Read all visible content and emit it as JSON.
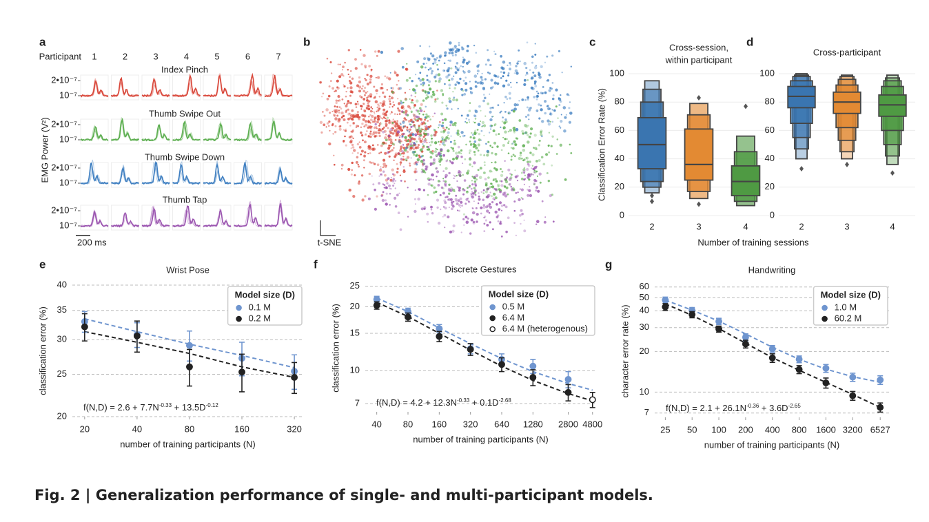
{
  "figure": {
    "caption": "Fig. 2 | Generalization performance of single- and multi-participant models."
  },
  "chart_data": [
    {
      "panel": "a",
      "type": "traces",
      "participant_label": "Participant",
      "participants": [
        "1",
        "2",
        "3",
        "4",
        "5",
        "6",
        "7"
      ],
      "rows": [
        {
          "name": "Index Pinch",
          "color": "#d9483b"
        },
        {
          "name": "Thumb Swipe Out",
          "color": "#5cae4f"
        },
        {
          "name": "Thumb Swipe Down",
          "color": "#3f7fc1"
        },
        {
          "name": "Thumb Tap",
          "color": "#9b55b0"
        }
      ],
      "yticks": [
        {
          "value": 2e-07,
          "label": "2•10⁻⁷"
        },
        {
          "value": 1e-07,
          "label": "10⁻⁷"
        }
      ],
      "ylabel": "EMG Power (V²)",
      "scale_bar": "200 ms"
    },
    {
      "panel": "b",
      "type": "embedding",
      "xlabel": "t-SNE",
      "colors": [
        "#d9483b",
        "#5cae4f",
        "#3f7fc1",
        "#9b55b0"
      ]
    },
    {
      "panel": "c",
      "type": "boxen",
      "title": [
        "Cross-session,",
        "within participant"
      ],
      "ylabel": "Classification Error Rate (%)",
      "xlabel": "Number of training sessions",
      "categories": [
        "2",
        "3",
        "4"
      ],
      "ylim": [
        0,
        100
      ],
      "yticks": [
        0,
        20,
        40,
        60,
        80,
        100
      ],
      "grid": true,
      "boxes": [
        {
          "color": "#3a75b0",
          "median": 50,
          "levels": [
            [
              33,
              69
            ],
            [
              24,
              80
            ],
            [
              20,
              89
            ],
            [
              16,
              95
            ]
          ],
          "outliers": [
            14,
            10
          ]
        },
        {
          "color": "#e38a33",
          "median": 36,
          "levels": [
            [
              25,
              61
            ],
            [
              17,
              71
            ],
            [
              12,
              79
            ]
          ],
          "outliers": [
            83,
            8
          ]
        },
        {
          "color": "#4f9a43",
          "median": 24,
          "levels": [
            [
              14,
              35
            ],
            [
              10,
              45
            ],
            [
              7,
              56
            ]
          ],
          "outliers": [
            77
          ]
        }
      ]
    },
    {
      "panel": "d",
      "type": "boxen",
      "title": [
        "Cross-participant"
      ],
      "categories": [
        "2",
        "3",
        "4"
      ],
      "ylim": [
        0,
        100
      ],
      "yticks": [
        0,
        20,
        40,
        60,
        80,
        100
      ],
      "grid": true,
      "boxes": [
        {
          "color": "#3a75b0",
          "median": 84,
          "levels": [
            [
              76,
              91
            ],
            [
              65,
              95
            ],
            [
              55,
              98
            ],
            [
              47,
              99
            ],
            [
              40,
              100
            ]
          ],
          "outliers": [
            33
          ]
        },
        {
          "color": "#e38a33",
          "median": 80,
          "levels": [
            [
              72,
              87
            ],
            [
              62,
              92
            ],
            [
              53,
              96
            ],
            [
              45,
              98
            ],
            [
              40,
              99
            ]
          ],
          "outliers": [
            36
          ]
        },
        {
          "color": "#4f9a43",
          "median": 78,
          "levels": [
            [
              70,
              85
            ],
            [
              60,
              91
            ],
            [
              50,
              95
            ],
            [
              42,
              97
            ],
            [
              36,
              99
            ]
          ],
          "outliers": [
            30
          ]
        }
      ]
    },
    {
      "panel": "e",
      "type": "line",
      "title": "Wrist Pose",
      "xlabel": "number of training participants (N)",
      "ylabel": "classification error (%)",
      "x": [
        20,
        40,
        80,
        160,
        320
      ],
      "xlim": [
        17,
        360
      ],
      "xticks": [
        20,
        40,
        80,
        160,
        320
      ],
      "xscale": "log",
      "ylim": [
        20,
        40
      ],
      "yticks": [
        20,
        25,
        30,
        35,
        40
      ],
      "yscale": "log",
      "grid": true,
      "legend": {
        "title": "Model size (D)",
        "loc": "upper right"
      },
      "annotation": [
        "f(N,D) = 2.6 + 7.7N",
        "-0.33",
        " + 13.5D",
        "-0.12"
      ],
      "series": [
        {
          "name": "0.1 M",
          "color": "#6f95cf",
          "marker": "filled",
          "values": [
            33.0,
            30.8,
            29.1,
            27.2,
            25.4
          ],
          "errors": [
            1.8,
            2.0,
            2.3,
            2.4,
            2.3
          ],
          "fit": [
            33.5,
            31.3,
            29.3,
            27.6,
            25.9
          ]
        },
        {
          "name": "0.2 M",
          "color": "#222222",
          "marker": "filled",
          "values": [
            32.1,
            30.6,
            26.0,
            25.3,
            24.6
          ],
          "errors": [
            2.3,
            2.5,
            2.5,
            2.5,
            2.0
          ],
          "fit": [
            31.3,
            29.6,
            27.9,
            26.0,
            24.6
          ]
        }
      ]
    },
    {
      "panel": "f",
      "type": "line",
      "title": "Discrete Gestures",
      "xlabel": "number of training participants (N)",
      "ylabel": "classification error (%)",
      "x": [
        40,
        80,
        160,
        320,
        640,
        1280,
        2800,
        4800
      ],
      "xlim": [
        31,
        5200
      ],
      "xticks": [
        40,
        80,
        160,
        320,
        640,
        1280,
        2800,
        4800
      ],
      "xscale": "log",
      "ylim": [
        6.4,
        25.5
      ],
      "yticks": [
        7,
        10,
        15,
        20,
        25
      ],
      "yscale": "log",
      "grid": true,
      "legend": {
        "title": "Model size (D)",
        "loc": "upper right"
      },
      "annotation": [
        "f(N,D) = 4.2 + 12.3N",
        "-0.33",
        " + 0.1D",
        "-2.68"
      ],
      "series": [
        {
          "name": "0.5 M",
          "color": "#6f95cf",
          "marker": "filled",
          "values": [
            21.7,
            19.0,
            15.8,
            12.7,
            11.3,
            10.5,
            9.1,
            null
          ],
          "errors": [
            0.7,
            0.7,
            0.7,
            0.7,
            0.7,
            0.8,
            0.8,
            null
          ],
          "fit": [
            22.0,
            19.0,
            15.9,
            13.4,
            11.4,
            9.9,
            8.7,
            8.1
          ]
        },
        {
          "name": "6.4 M",
          "color": "#222222",
          "marker": "filled",
          "values": [
            20.3,
            17.9,
            14.5,
            12.6,
            10.7,
            9.3,
            7.9,
            null
          ],
          "errors": [
            0.8,
            0.8,
            0.8,
            0.8,
            0.8,
            0.8,
            0.7,
            null
          ],
          "fit": [
            21.0,
            18.0,
            15.0,
            12.5,
            10.5,
            9.0,
            7.8,
            7.2
          ]
        },
        {
          "name": "6.4 M (heterogenous)",
          "color": "#222222",
          "marker": "hollow",
          "values": [
            null,
            null,
            null,
            null,
            null,
            null,
            null,
            7.3
          ],
          "errors": [
            null,
            null,
            null,
            null,
            null,
            null,
            null,
            0.6
          ]
        }
      ]
    },
    {
      "panel": "g",
      "type": "line",
      "title": "Handwriting",
      "xlabel": "number of training participants (N)",
      "ylabel": "character error rate (%)",
      "x": [
        25,
        50,
        100,
        200,
        400,
        800,
        1600,
        3200,
        6527
      ],
      "xlim": [
        19,
        8200
      ],
      "xticks": [
        25,
        50,
        100,
        200,
        400,
        800,
        1600,
        3200,
        6527
      ],
      "xscale": "log",
      "ylim": [
        6.5,
        62
      ],
      "yticks": [
        7,
        10,
        20,
        30,
        40,
        50,
        60
      ],
      "yscale": "log",
      "grid": true,
      "legend": {
        "title": "Model size (D)",
        "loc": "upper right"
      },
      "annotation": [
        "f(N,D) = 2.1 + 26.1N",
        "-0.36",
        " + 3.6D",
        "-2.65"
      ],
      "series": [
        {
          "name": "1.0 M",
          "color": "#6f95cf",
          "marker": "filled",
          "values": [
            48,
            40.3,
            33.4,
            25.5,
            20.9,
            17.5,
            15.0,
            12.9,
            12.3
          ],
          "errors": [
            2.5,
            2.0,
            1.8,
            1.5,
            1.2,
            1.0,
            1.0,
            0.9,
            0.9
          ],
          "fit": [
            48,
            40.5,
            33.5,
            27,
            21.5,
            17.5,
            14.8,
            13,
            11.8
          ]
        },
        {
          "name": "60.2 M",
          "color": "#222222",
          "marker": "filled",
          "values": [
            42.7,
            37.5,
            29.3,
            22.7,
            17.9,
            14.7,
            11.7,
            9.4,
            7.7
          ],
          "errors": [
            2.5,
            2.0,
            1.5,
            1.5,
            1.3,
            1.0,
            1.0,
            0.7,
            0.6
          ],
          "fit": [
            45,
            37,
            29.5,
            23,
            18,
            14.5,
            11.8,
            9.6,
            7.7
          ]
        }
      ]
    }
  ]
}
